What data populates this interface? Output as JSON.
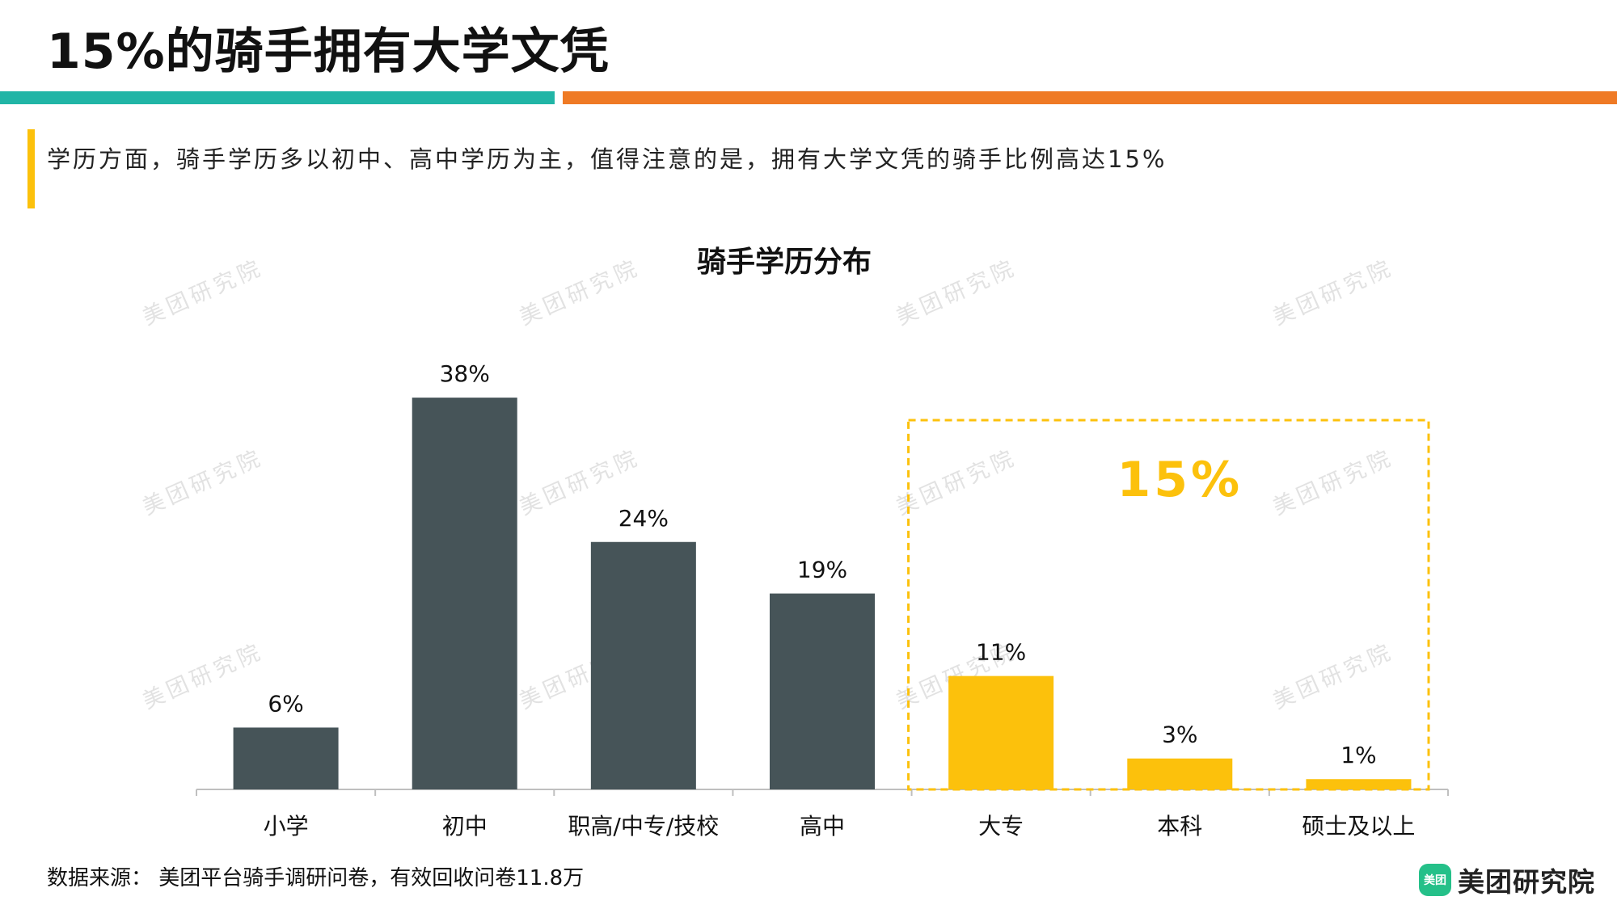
{
  "page": {
    "title": "15%的骑手拥有大学文凭",
    "subtitle": "学历方面，骑手学历多以初中、高中学历为主，值得注意的是，拥有大学文凭的骑手比例高达15%",
    "source": "数据来源： 美团平台骑手调研问卷，有效回收问卷11.8万",
    "brand_name": "美团研究院",
    "brand_icon_text": "美团",
    "watermark_text": "美团研究院"
  },
  "colors": {
    "teal": "#21b5a6",
    "orange": "#ef7a25",
    "accent_yellow": "#fcc10c",
    "bar_dark": "#465458",
    "bar_highlight": "#fcc10c",
    "highlight_text": "#fcc10c",
    "axis": "#bfbfbf",
    "brand_green": "#25c089"
  },
  "chart_data": {
    "type": "bar",
    "title": "骑手学历分布",
    "categories": [
      "小学",
      "初中",
      "职高/中专/技校",
      "高中",
      "大专",
      "本科",
      "硕士及以上"
    ],
    "values": [
      6,
      38,
      24,
      19,
      11,
      3,
      1
    ],
    "value_labels": [
      "6%",
      "38%",
      "24%",
      "19%",
      "11%",
      "3%",
      "1%"
    ],
    "highlighted": [
      false,
      false,
      false,
      false,
      true,
      true,
      true
    ],
    "highlight_group_label": "15%",
    "ylim": [
      0,
      40
    ],
    "xlabel": "",
    "ylabel": "",
    "grid": false,
    "legend": "none"
  }
}
